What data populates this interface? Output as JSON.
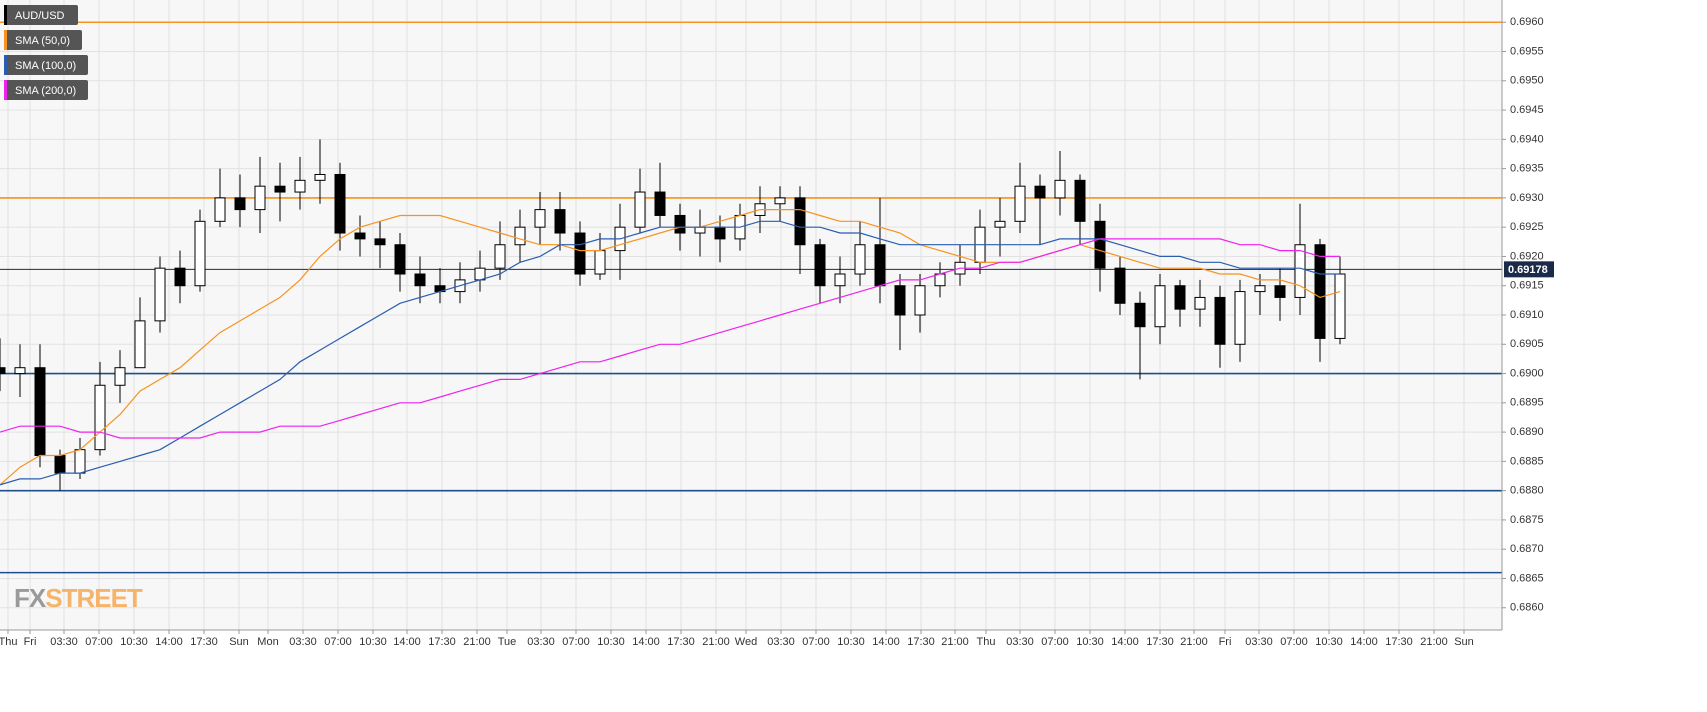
{
  "chart_data": {
    "type": "candlestick",
    "name": "AUD/USD",
    "up_color": "#ffffff",
    "down_color": "#000000",
    "x": [
      0,
      2,
      4,
      6,
      8,
      10,
      12,
      14,
      16,
      18,
      20,
      22,
      24,
      26,
      28,
      30,
      32,
      34,
      36,
      38,
      40,
      42,
      44,
      46,
      48,
      50,
      52,
      54,
      56,
      58,
      60,
      62,
      64,
      66,
      68,
      70,
      72,
      74,
      76,
      78,
      80,
      82,
      84,
      86,
      88,
      90,
      92,
      94,
      96,
      98,
      100,
      102,
      104,
      106,
      108,
      110,
      112,
      114,
      116,
      118,
      120,
      122,
      124,
      126,
      128,
      130,
      132,
      134
    ],
    "open": [
      0.6901,
      0.69,
      0.6901,
      0.6886,
      0.6883,
      0.6887,
      0.6898,
      0.6901,
      0.6909,
      0.6918,
      0.6915,
      0.6926,
      0.693,
      0.6928,
      0.6932,
      0.6931,
      0.6933,
      0.6934,
      0.6924,
      0.6923,
      0.6922,
      0.6917,
      0.6915,
      0.6914,
      0.6916,
      0.6918,
      0.6922,
      0.6925,
      0.6928,
      0.6924,
      0.6917,
      0.6921,
      0.6925,
      0.6931,
      0.6927,
      0.6924,
      0.6925,
      0.6923,
      0.6927,
      0.6929,
      0.693,
      0.6922,
      0.6915,
      0.6917,
      0.6922,
      0.6915,
      0.691,
      0.6915,
      0.6917,
      0.6919,
      0.6925,
      0.6926,
      0.6932,
      0.693,
      0.6933,
      0.6926,
      0.6918,
      0.6912,
      0.6908,
      0.6915,
      0.6911,
      0.6913,
      0.6905,
      0.6914,
      0.6915,
      0.6913,
      0.6922,
      0.6906
    ],
    "high": [
      0.6906,
      0.6905,
      0.6905,
      0.6887,
      0.6889,
      0.6902,
      0.6904,
      0.6913,
      0.692,
      0.6921,
      0.6928,
      0.6935,
      0.6934,
      0.6937,
      0.6936,
      0.6937,
      0.694,
      0.6936,
      0.6927,
      0.6926,
      0.6924,
      0.692,
      0.6918,
      0.6919,
      0.6921,
      0.6926,
      0.6928,
      0.6931,
      0.6931,
      0.6926,
      0.6924,
      0.6929,
      0.6935,
      0.6936,
      0.6929,
      0.6928,
      0.6927,
      0.6929,
      0.6932,
      0.6932,
      0.6932,
      0.6923,
      0.692,
      0.6926,
      0.693,
      0.6917,
      0.6917,
      0.6919,
      0.6922,
      0.6928,
      0.693,
      0.6936,
      0.6934,
      0.6938,
      0.6934,
      0.6929,
      0.692,
      0.6914,
      0.6917,
      0.6916,
      0.6916,
      0.6915,
      0.6916,
      0.6917,
      0.6918,
      0.6929,
      0.6923,
      0.692
    ],
    "low": [
      0.6897,
      0.6896,
      0.6884,
      0.688,
      0.6882,
      0.6886,
      0.6895,
      0.6901,
      0.6907,
      0.6912,
      0.6914,
      0.6925,
      0.6925,
      0.6924,
      0.6926,
      0.6928,
      0.6929,
      0.6921,
      0.692,
      0.6918,
      0.6914,
      0.6912,
      0.6912,
      0.6912,
      0.6914,
      0.6916,
      0.6919,
      0.6922,
      0.6921,
      0.6915,
      0.6916,
      0.6916,
      0.6924,
      0.6925,
      0.6921,
      0.692,
      0.6919,
      0.6921,
      0.6924,
      0.6926,
      0.6917,
      0.6912,
      0.6912,
      0.6915,
      0.6912,
      0.6904,
      0.6907,
      0.6913,
      0.6915,
      0.6917,
      0.692,
      0.6924,
      0.6922,
      0.6927,
      0.6922,
      0.6914,
      0.691,
      0.6899,
      0.6905,
      0.6908,
      0.6908,
      0.6901,
      0.6902,
      0.691,
      0.6909,
      0.691,
      0.6902,
      0.6905
    ],
    "close": [
      0.69,
      0.6901,
      0.6886,
      0.6883,
      0.6887,
      0.6898,
      0.6901,
      0.6909,
      0.6918,
      0.6915,
      0.6926,
      0.693,
      0.6928,
      0.6932,
      0.6931,
      0.6933,
      0.6934,
      0.6924,
      0.6923,
      0.6922,
      0.6917,
      0.6915,
      0.6914,
      0.6916,
      0.6918,
      0.6922,
      0.6925,
      0.6928,
      0.6924,
      0.6917,
      0.6921,
      0.6925,
      0.6931,
      0.6927,
      0.6924,
      0.6925,
      0.6923,
      0.6927,
      0.6929,
      0.693,
      0.6922,
      0.6915,
      0.6917,
      0.6922,
      0.6915,
      0.691,
      0.6915,
      0.6917,
      0.6919,
      0.6925,
      0.6926,
      0.6932,
      0.693,
      0.6933,
      0.6926,
      0.6918,
      0.6912,
      0.6908,
      0.6915,
      0.6911,
      0.6913,
      0.6905,
      0.6914,
      0.6915,
      0.6913,
      0.6922,
      0.6906,
      0.6917
    ],
    "series": [
      {
        "name": "SMA (50,0)",
        "color": "#f7931e",
        "values": [
          0.6881,
          0.6884,
          0.6886,
          0.6886,
          0.6887,
          0.689,
          0.6893,
          0.6897,
          0.6899,
          0.6901,
          0.6904,
          0.6907,
          0.6909,
          0.6911,
          0.6913,
          0.6916,
          0.692,
          0.6923,
          0.6925,
          0.6926,
          0.6927,
          0.6927,
          0.6927,
          0.6926,
          0.6925,
          0.6924,
          0.6923,
          0.6922,
          0.6922,
          0.6921,
          0.6921,
          0.6922,
          0.6923,
          0.6924,
          0.6925,
          0.6925,
          0.6926,
          0.6927,
          0.6928,
          0.6928,
          0.6928,
          0.6927,
          0.6926,
          0.6926,
          0.6925,
          0.6924,
          0.6922,
          0.6921,
          0.692,
          0.6919,
          0.6919,
          0.6919,
          0.692,
          0.6921,
          0.6922,
          0.6921,
          0.692,
          0.6919,
          0.6918,
          0.6918,
          0.6918,
          0.6917,
          0.6917,
          0.6916,
          0.6916,
          0.6915,
          0.6913,
          0.6914
        ]
      },
      {
        "name": "SMA (100,0)",
        "color": "#2a5db0",
        "values": [
          0.6881,
          0.6882,
          0.6882,
          0.6883,
          0.6883,
          0.6884,
          0.6885,
          0.6886,
          0.6887,
          0.6889,
          0.6891,
          0.6893,
          0.6895,
          0.6897,
          0.6899,
          0.6902,
          0.6904,
          0.6906,
          0.6908,
          0.691,
          0.6912,
          0.6913,
          0.6914,
          0.6915,
          0.6916,
          0.6917,
          0.6919,
          0.692,
          0.6922,
          0.6922,
          0.6923,
          0.6923,
          0.6924,
          0.6925,
          0.6925,
          0.6925,
          0.6925,
          0.6925,
          0.6926,
          0.6926,
          0.6925,
          0.6925,
          0.6924,
          0.6924,
          0.6923,
          0.6922,
          0.6922,
          0.6922,
          0.6922,
          0.6922,
          0.6922,
          0.6922,
          0.6922,
          0.6923,
          0.6923,
          0.6923,
          0.6922,
          0.6921,
          0.692,
          0.692,
          0.6919,
          0.6919,
          0.6918,
          0.6918,
          0.6918,
          0.6918,
          0.6917,
          0.6917
        ]
      },
      {
        "name": "SMA (200,0)",
        "color": "#ee22ee",
        "values": [
          0.689,
          0.6891,
          0.6891,
          0.6891,
          0.689,
          0.689,
          0.6889,
          0.6889,
          0.6889,
          0.6889,
          0.6889,
          0.689,
          0.689,
          0.689,
          0.6891,
          0.6891,
          0.6891,
          0.6892,
          0.6893,
          0.6894,
          0.6895,
          0.6895,
          0.6896,
          0.6897,
          0.6898,
          0.6899,
          0.6899,
          0.69,
          0.6901,
          0.6902,
          0.6902,
          0.6903,
          0.6904,
          0.6905,
          0.6905,
          0.6906,
          0.6907,
          0.6908,
          0.6909,
          0.691,
          0.6911,
          0.6912,
          0.6913,
          0.6914,
          0.6915,
          0.6916,
          0.6916,
          0.6917,
          0.6918,
          0.6918,
          0.6919,
          0.6919,
          0.692,
          0.6921,
          0.6922,
          0.6923,
          0.6923,
          0.6923,
          0.6923,
          0.6923,
          0.6923,
          0.6923,
          0.6922,
          0.6922,
          0.6921,
          0.6921,
          0.692,
          0.692
        ]
      }
    ],
    "levels": [
      {
        "value": 0.696,
        "color": "#f7931e"
      },
      {
        "value": 0.693,
        "color": "#f7931e"
      },
      {
        "value": 0.69,
        "color": "#1f4e8c"
      },
      {
        "value": 0.688,
        "color": "#1f4e8c"
      },
      {
        "value": 0.6866,
        "color": "#1f4e8c"
      }
    ],
    "price_line": {
      "value": 0.69178,
      "color": "#1c2a4a"
    },
    "ylim": [
      0.68562,
      0.69638
    ],
    "yticks": [
      {
        "value": 0.686,
        "label": "0.6860"
      },
      {
        "value": 0.6865,
        "label": "0.6865"
      },
      {
        "value": 0.687,
        "label": "0.6870"
      },
      {
        "value": 0.6875,
        "label": "0.6875"
      },
      {
        "value": 0.688,
        "label": "0.6880"
      },
      {
        "value": 0.6885,
        "label": "0.6885"
      },
      {
        "value": 0.689,
        "label": "0.6890"
      },
      {
        "value": 0.6895,
        "label": "0.6895"
      },
      {
        "value": 0.69,
        "label": "0.6900"
      },
      {
        "value": 0.6905,
        "label": "0.6905"
      },
      {
        "value": 0.691,
        "label": "0.6910"
      },
      {
        "value": 0.6915,
        "label": "0.6915"
      },
      {
        "value": 0.692,
        "label": "0.6920"
      },
      {
        "value": 0.6925,
        "label": "0.6925"
      },
      {
        "value": 0.693,
        "label": "0.6930"
      },
      {
        "value": 0.6935,
        "label": "0.6935"
      },
      {
        "value": 0.694,
        "label": "0.6940"
      },
      {
        "value": 0.6945,
        "label": "0.6945"
      },
      {
        "value": 0.695,
        "label": "0.6950"
      },
      {
        "value": 0.6955,
        "label": "0.6955"
      },
      {
        "value": 0.696,
        "label": "0.6960"
      }
    ],
    "xlim": [
      0,
      150.2
    ],
    "xticks": [
      {
        "value": 0.8,
        "label": "Thu"
      },
      {
        "value": 3,
        "label": "Fri"
      },
      {
        "value": 6.4,
        "label": "03:30"
      },
      {
        "value": 9.9,
        "label": "07:00"
      },
      {
        "value": 13.4,
        "label": "10:30"
      },
      {
        "value": 16.9,
        "label": "14:00"
      },
      {
        "value": 20.4,
        "label": "17:30"
      },
      {
        "value": 23.9,
        "label": "Sun"
      },
      {
        "value": 26.8,
        "label": "Mon"
      },
      {
        "value": 30.3,
        "label": "03:30"
      },
      {
        "value": 33.8,
        "label": "07:00"
      },
      {
        "value": 37.3,
        "label": "10:30"
      },
      {
        "value": 40.7,
        "label": "14:00"
      },
      {
        "value": 44.2,
        "label": "17:30"
      },
      {
        "value": 47.7,
        "label": "21:00"
      },
      {
        "value": 50.7,
        "label": "Tue"
      },
      {
        "value": 54.1,
        "label": "03:30"
      },
      {
        "value": 57.6,
        "label": "07:00"
      },
      {
        "value": 61.1,
        "label": "10:30"
      },
      {
        "value": 64.6,
        "label": "14:00"
      },
      {
        "value": 68.1,
        "label": "17:30"
      },
      {
        "value": 71.6,
        "label": "21:00"
      },
      {
        "value": 74.6,
        "label": "Wed"
      },
      {
        "value": 78.1,
        "label": "03:30"
      },
      {
        "value": 81.6,
        "label": "07:00"
      },
      {
        "value": 85.1,
        "label": "10:30"
      },
      {
        "value": 88.6,
        "label": "14:00"
      },
      {
        "value": 92.1,
        "label": "17:30"
      },
      {
        "value": 95.5,
        "label": "21:00"
      },
      {
        "value": 98.6,
        "label": "Thu"
      },
      {
        "value": 102,
        "label": "03:30"
      },
      {
        "value": 105.5,
        "label": "07:00"
      },
      {
        "value": 109,
        "label": "10:30"
      },
      {
        "value": 112.5,
        "label": "14:00"
      },
      {
        "value": 116,
        "label": "17:30"
      },
      {
        "value": 119.4,
        "label": "21:00"
      },
      {
        "value": 122.5,
        "label": "Fri"
      },
      {
        "value": 125.9,
        "label": "03:30"
      },
      {
        "value": 129.4,
        "label": "07:00"
      },
      {
        "value": 132.9,
        "label": "10:30"
      },
      {
        "value": 136.4,
        "label": "14:00"
      },
      {
        "value": 139.9,
        "label": "17:30"
      },
      {
        "value": 143.4,
        "label": "21:00"
      },
      {
        "value": 146.4,
        "label": "Sun"
      }
    ],
    "grid": true,
    "logo": {
      "part1": "FX",
      "part2": "STREET"
    }
  }
}
